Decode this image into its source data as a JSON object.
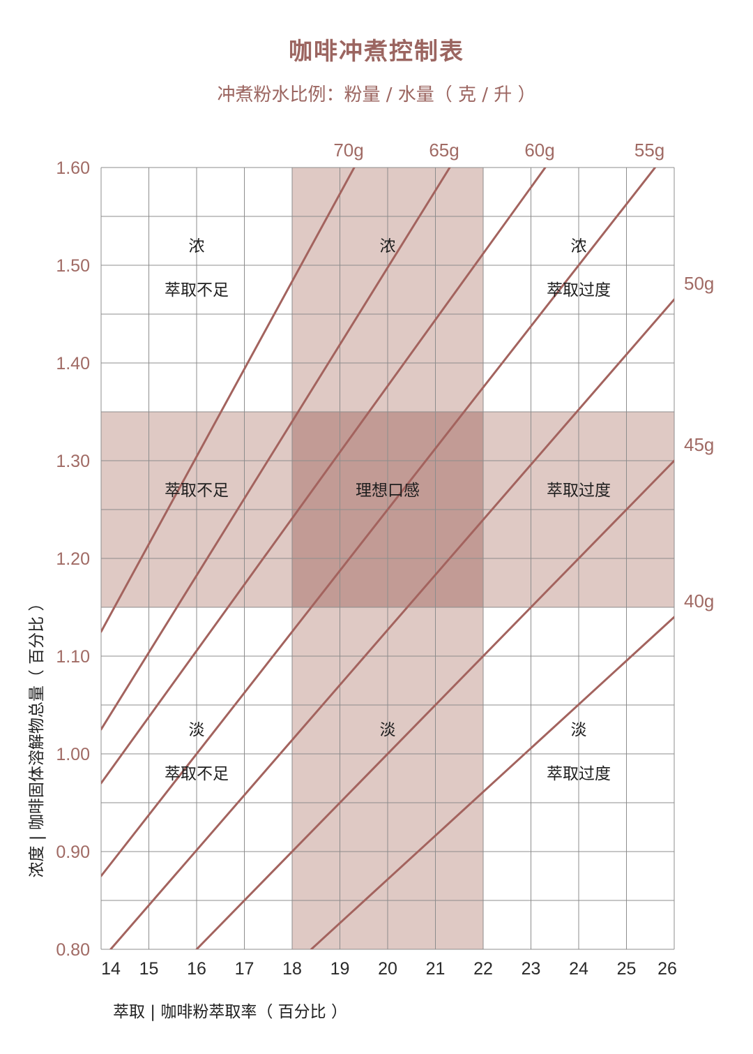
{
  "chart_data": {
    "type": "line",
    "title": "咖啡冲煮控制表",
    "subtitle": "冲煮粉水比例：粉量 / 水量（ 克 / 升 ）",
    "xlabel": "萃取 |  咖啡粉萃取率（ 百分比 ）",
    "ylabel": "浓度 | 咖啡固体溶解物总量（ 百分比 ）",
    "xlim": [
      14,
      26
    ],
    "ylim": [
      0.8,
      1.6
    ],
    "x_ticks": [
      "14",
      "15",
      "16",
      "17",
      "18",
      "19",
      "20",
      "21",
      "22",
      "23",
      "24",
      "25",
      "26"
    ],
    "y_ticks": [
      "0.80",
      "0.90",
      "1.00",
      "1.10",
      "1.20",
      "1.30",
      "1.40",
      "1.50",
      "1.60"
    ],
    "grid": true,
    "series": [
      {
        "name": "70g",
        "x": [
          14,
          19.3
        ],
        "y": [
          1.125,
          1.6
        ]
      },
      {
        "name": "65g",
        "x": [
          14,
          21.3
        ],
        "y": [
          1.025,
          1.6
        ]
      },
      {
        "name": "60g",
        "x": [
          14,
          23.3
        ],
        "y": [
          0.97,
          1.6
        ]
      },
      {
        "name": "55g",
        "x": [
          14,
          25.6
        ],
        "y": [
          0.875,
          1.6
        ]
      },
      {
        "name": "50g",
        "x": [
          14.2,
          26
        ],
        "y": [
          0.8,
          1.465
        ]
      },
      {
        "name": "45g",
        "x": [
          16,
          26
        ],
        "y": [
          0.8,
          1.3
        ]
      },
      {
        "name": "40g",
        "x": [
          18.4,
          26
        ],
        "y": [
          0.8,
          1.14
        ]
      }
    ],
    "regions": [
      {
        "name": "ideal-extraction-band",
        "x": [
          18,
          22
        ],
        "y": [
          0.8,
          1.6
        ]
      },
      {
        "name": "ideal-strength-band",
        "x": [
          14,
          26
        ],
        "y": [
          1.15,
          1.35
        ]
      }
    ],
    "zones": [
      {
        "lines": [
          "浓",
          "萃取不足"
        ],
        "x": 16,
        "y": [
          1.52,
          1.475
        ]
      },
      {
        "lines": [
          "浓"
        ],
        "x": 20,
        "y": [
          1.52
        ]
      },
      {
        "lines": [
          "浓",
          "萃取过度"
        ],
        "x": 24,
        "y": [
          1.52,
          1.475
        ]
      },
      {
        "lines": [
          "萃取不足"
        ],
        "x": 16,
        "y": [
          1.27
        ]
      },
      {
        "lines": [
          "理想口感"
        ],
        "x": 20,
        "y": [
          1.27
        ]
      },
      {
        "lines": [
          "萃取过度"
        ],
        "x": 24,
        "y": [
          1.27
        ]
      },
      {
        "lines": [
          "淡",
          "萃取不足"
        ],
        "x": 16,
        "y": [
          1.025,
          0.98
        ]
      },
      {
        "lines": [
          "淡"
        ],
        "x": 20,
        "y": [
          1.025
        ]
      },
      {
        "lines": [
          "淡",
          "萃取过度"
        ],
        "x": 24,
        "y": [
          1.025,
          0.98
        ]
      }
    ],
    "colors": {
      "line": "#a3635e",
      "band": "#dfc9c4",
      "overlap": "#c29b95",
      "grid": "#8c8c8c",
      "label": "#a06a64"
    }
  }
}
